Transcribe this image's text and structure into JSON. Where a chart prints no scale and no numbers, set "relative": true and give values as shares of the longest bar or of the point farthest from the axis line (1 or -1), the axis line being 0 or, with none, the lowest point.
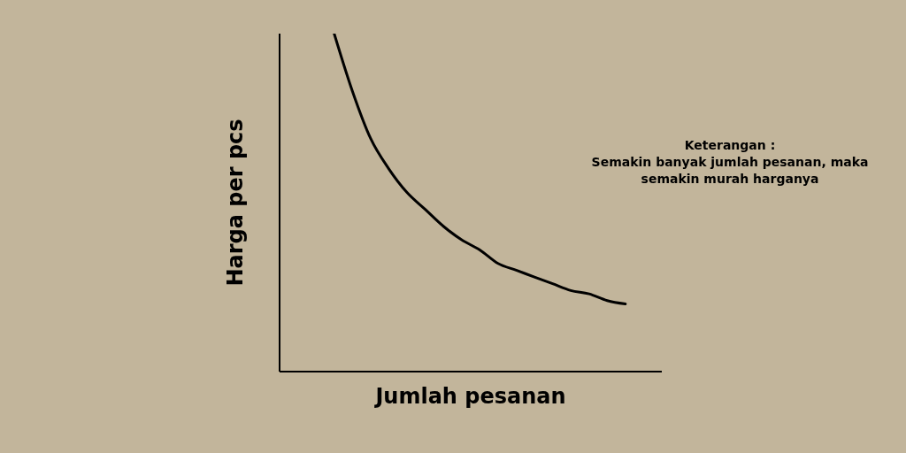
{
  "chart_data": {
    "type": "line",
    "xlabel": "Jumlah pesanan",
    "ylabel": "Harga per pcs",
    "annotations": [
      "Keterangan :",
      "Semakin banyak jumlah pesanan, maka semakin murah harganya"
    ],
    "categories": [
      null,
      null,
      null,
      null,
      null,
      null,
      null,
      null,
      null,
      null,
      null,
      null,
      null,
      null,
      null,
      null,
      null,
      null,
      null,
      null,
      null,
      null
    ],
    "values": [
      null,
      null,
      null,
      1,
      0.83,
      0.69,
      0.6,
      0.53,
      0.48,
      0.43,
      0.39,
      0.36,
      0.32,
      0.3,
      0.28,
      0.26,
      0.24,
      0.23,
      0.21,
      0.2,
      null,
      null
    ],
    "color": "#000000",
    "relative": true
  }
}
